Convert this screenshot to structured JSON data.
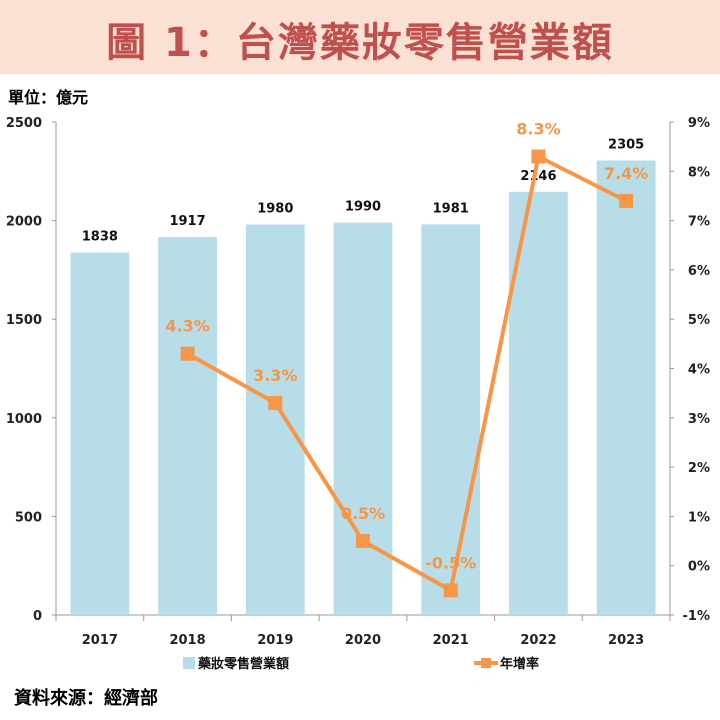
{
  "title": "圖 1：台灣藥妝零售營業額",
  "unit_label": "單位：億元",
  "source_label": "資料來源：經濟部",
  "colors": {
    "bar": "#b7dde8",
    "line": "#f79646",
    "title": "#c0504d",
    "title_band": "#fbe1d3"
  },
  "chart_data": {
    "type": "bar",
    "categories": [
      "2017",
      "2018",
      "2019",
      "2020",
      "2021",
      "2022",
      "2023"
    ],
    "series": [
      {
        "name": "藥妝零售營業額",
        "type": "bar",
        "axis": "left",
        "values": [
          1838,
          1917,
          1980,
          1990,
          1981,
          2146,
          2305
        ],
        "labels": [
          "1838",
          "1917",
          "1980",
          "1990",
          "1981",
          "2146",
          "2305"
        ]
      },
      {
        "name": "年增率",
        "type": "line",
        "axis": "right",
        "values": [
          null,
          4.3,
          3.3,
          0.5,
          -0.5,
          8.3,
          7.4
        ],
        "labels": [
          "",
          "4.3%",
          "3.3%",
          "0.5%",
          "-0.5%",
          "8.3%",
          "7.4%"
        ]
      }
    ],
    "y_left": {
      "min": 0,
      "max": 2500,
      "ticks": [
        "0",
        "500",
        "1000",
        "1500",
        "2000",
        "2500"
      ]
    },
    "y_right": {
      "min": -1,
      "max": 9,
      "ticks": [
        "-1%",
        "0%",
        "1%",
        "2%",
        "3%",
        "4%",
        "5%",
        "6%",
        "7%",
        "8%",
        "9%"
      ]
    },
    "grid": false,
    "legend_position": "bottom"
  }
}
